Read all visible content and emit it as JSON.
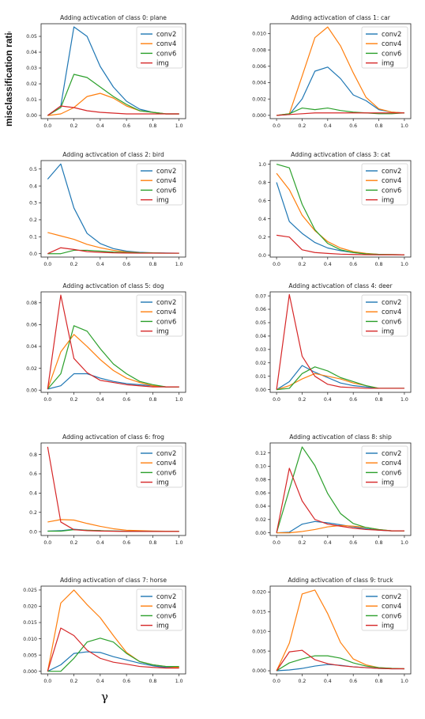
{
  "figure": {
    "ylabel": "misclassification ratio",
    "xlabel": "γ",
    "colors": {
      "conv2": "#1f77b4",
      "conv4": "#ff7f0e",
      "conv6": "#2ca02c",
      "img": "#d62728"
    }
  },
  "chart_data": [
    {
      "type": "line",
      "title": "Adding activcation of class 0: plane",
      "x": [
        0.0,
        0.1,
        0.2,
        0.3,
        0.4,
        0.5,
        0.6,
        0.7,
        0.8,
        0.9,
        1.0
      ],
      "ylim": [
        -0.002,
        0.058
      ],
      "yticks": [
        0.0,
        0.01,
        0.02,
        0.03,
        0.04,
        0.05
      ],
      "ytick_labels": [
        "0.00",
        "0.01",
        "0.02",
        "0.03",
        "0.04",
        "0.05"
      ],
      "legend": "top-right",
      "series": [
        {
          "name": "conv2",
          "values": [
            0.0,
            0.006,
            0.056,
            0.05,
            0.031,
            0.018,
            0.009,
            0.004,
            0.002,
            0.001,
            0.001
          ]
        },
        {
          "name": "conv4",
          "values": [
            0.0,
            0.001,
            0.005,
            0.012,
            0.014,
            0.011,
            0.006,
            0.003,
            0.002,
            0.001,
            0.001
          ]
        },
        {
          "name": "conv6",
          "values": [
            0.0,
            0.005,
            0.026,
            0.024,
            0.018,
            0.012,
            0.007,
            0.003,
            0.002,
            0.001,
            0.001
          ]
        },
        {
          "name": "img",
          "values": [
            0.0,
            0.006,
            0.005,
            0.003,
            0.002,
            0.0015,
            0.001,
            0.001,
            0.001,
            0.001,
            0.001
          ]
        }
      ]
    },
    {
      "type": "line",
      "title": "Adding activcation of class 1: car",
      "x": [
        0.0,
        0.1,
        0.2,
        0.3,
        0.4,
        0.5,
        0.6,
        0.7,
        0.8,
        0.9,
        1.0
      ],
      "ylim": [
        -0.0004,
        0.0112
      ],
      "yticks": [
        0.0,
        0.002,
        0.004,
        0.006,
        0.008,
        0.01
      ],
      "ytick_labels": [
        "0.000",
        "0.002",
        "0.004",
        "0.006",
        "0.008",
        "0.010"
      ],
      "legend": "top-right",
      "series": [
        {
          "name": "conv2",
          "values": [
            0.0,
            0.0001,
            0.002,
            0.0054,
            0.0059,
            0.0045,
            0.0025,
            0.0018,
            0.0007,
            0.0004,
            0.0003
          ]
        },
        {
          "name": "conv4",
          "values": [
            0.0,
            0.0002,
            0.0048,
            0.0095,
            0.0108,
            0.0085,
            0.0052,
            0.0022,
            0.0008,
            0.0004,
            0.0003
          ]
        },
        {
          "name": "conv6",
          "values": [
            0.0,
            0.0002,
            0.0009,
            0.0007,
            0.0009,
            0.0006,
            0.0004,
            0.0003,
            0.0002,
            0.0002,
            0.0003
          ]
        },
        {
          "name": "img",
          "values": [
            0.0,
            0.0001,
            0.0002,
            0.0003,
            0.0003,
            0.0003,
            0.0003,
            0.0003,
            0.0003,
            0.0003,
            0.0003
          ]
        }
      ]
    },
    {
      "type": "line",
      "title": "Adding activcation of class 2: bird",
      "x": [
        0.0,
        0.1,
        0.2,
        0.3,
        0.4,
        0.5,
        0.6,
        0.7,
        0.8,
        0.9,
        1.0
      ],
      "ylim": [
        -0.02,
        0.55
      ],
      "yticks": [
        0.0,
        0.1,
        0.2,
        0.3,
        0.4,
        0.5
      ],
      "ytick_labels": [
        "0.0",
        "0.1",
        "0.2",
        "0.3",
        "0.4",
        "0.5"
      ],
      "legend": "top-right",
      "series": [
        {
          "name": "conv2",
          "values": [
            0.44,
            0.53,
            0.27,
            0.12,
            0.06,
            0.03,
            0.015,
            0.008,
            0.005,
            0.004,
            0.003
          ]
        },
        {
          "name": "conv4",
          "values": [
            0.125,
            0.105,
            0.085,
            0.055,
            0.035,
            0.02,
            0.01,
            0.006,
            0.004,
            0.003,
            0.003
          ]
        },
        {
          "name": "conv6",
          "values": [
            0.0,
            0.0,
            0.02,
            0.02,
            0.015,
            0.01,
            0.007,
            0.005,
            0.004,
            0.003,
            0.003
          ]
        },
        {
          "name": "img",
          "values": [
            0.0,
            0.035,
            0.025,
            0.012,
            0.008,
            0.005,
            0.004,
            0.003,
            0.003,
            0.003,
            0.003
          ]
        }
      ]
    },
    {
      "type": "line",
      "title": "Adding activcation of class 3: cat",
      "x": [
        0.0,
        0.1,
        0.2,
        0.3,
        0.4,
        0.5,
        0.6,
        0.7,
        0.8,
        0.9,
        1.0
      ],
      "ylim": [
        -0.02,
        1.04
      ],
      "yticks": [
        0.0,
        0.2,
        0.4,
        0.6,
        0.8,
        1.0
      ],
      "ytick_labels": [
        "0.0",
        "0.2",
        "0.4",
        "0.6",
        "0.8",
        "1.0"
      ],
      "legend": "top-right",
      "series": [
        {
          "name": "conv2",
          "values": [
            0.8,
            0.37,
            0.24,
            0.14,
            0.08,
            0.05,
            0.03,
            0.015,
            0.01,
            0.007,
            0.005
          ]
        },
        {
          "name": "conv4",
          "values": [
            0.9,
            0.72,
            0.44,
            0.27,
            0.15,
            0.08,
            0.04,
            0.02,
            0.01,
            0.007,
            0.005
          ]
        },
        {
          "name": "conv6",
          "values": [
            1.0,
            0.96,
            0.56,
            0.28,
            0.13,
            0.06,
            0.03,
            0.015,
            0.01,
            0.007,
            0.005
          ]
        },
        {
          "name": "img",
          "values": [
            0.22,
            0.2,
            0.06,
            0.03,
            0.02,
            0.012,
            0.008,
            0.006,
            0.005,
            0.005,
            0.005
          ]
        }
      ]
    },
    {
      "type": "line",
      "title": "Adding activcation of class 5: dog",
      "x": [
        0.0,
        0.1,
        0.2,
        0.3,
        0.4,
        0.5,
        0.6,
        0.7,
        0.8,
        0.9,
        1.0
      ],
      "ylim": [
        -0.002,
        0.09
      ],
      "yticks": [
        0.0,
        0.02,
        0.04,
        0.06,
        0.08
      ],
      "ytick_labels": [
        "0.00",
        "0.02",
        "0.04",
        "0.06",
        "0.08"
      ],
      "legend": "top-right",
      "series": [
        {
          "name": "conv2",
          "values": [
            0.001,
            0.004,
            0.015,
            0.015,
            0.011,
            0.008,
            0.006,
            0.005,
            0.004,
            0.003,
            0.003
          ]
        },
        {
          "name": "conv4",
          "values": [
            0.001,
            0.035,
            0.051,
            0.04,
            0.028,
            0.018,
            0.011,
            0.007,
            0.004,
            0.003,
            0.003
          ]
        },
        {
          "name": "conv6",
          "values": [
            0.001,
            0.015,
            0.059,
            0.054,
            0.038,
            0.024,
            0.015,
            0.008,
            0.005,
            0.003,
            0.003
          ]
        },
        {
          "name": "img",
          "values": [
            0.001,
            0.087,
            0.029,
            0.016,
            0.009,
            0.007,
            0.005,
            0.004,
            0.003,
            0.003,
            0.003
          ]
        }
      ]
    },
    {
      "type": "line",
      "title": "Adding activcation of class 4: deer",
      "x": [
        0.0,
        0.1,
        0.2,
        0.3,
        0.4,
        0.5,
        0.6,
        0.7,
        0.8,
        0.9,
        1.0
      ],
      "ylim": [
        -0.002,
        0.073
      ],
      "yticks": [
        0.0,
        0.01,
        0.02,
        0.03,
        0.04,
        0.05,
        0.06,
        0.07
      ],
      "ytick_labels": [
        "0.00",
        "0.01",
        "0.02",
        "0.03",
        "0.04",
        "0.05",
        "0.06",
        "0.07"
      ],
      "legend": "top-right",
      "series": [
        {
          "name": "conv2",
          "values": [
            0.0,
            0.006,
            0.018,
            0.013,
            0.009,
            0.005,
            0.003,
            0.002,
            0.001,
            0.001,
            0.001
          ]
        },
        {
          "name": "conv4",
          "values": [
            0.0,
            0.003,
            0.008,
            0.012,
            0.01,
            0.008,
            0.005,
            0.003,
            0.001,
            0.001,
            0.001
          ]
        },
        {
          "name": "conv6",
          "values": [
            0.0,
            0.001,
            0.012,
            0.017,
            0.014,
            0.009,
            0.006,
            0.003,
            0.001,
            0.001,
            0.001
          ]
        },
        {
          "name": "img",
          "values": [
            0.0,
            0.071,
            0.025,
            0.01,
            0.004,
            0.002,
            0.0015,
            0.001,
            0.001,
            0.001,
            0.001
          ]
        }
      ]
    },
    {
      "type": "line",
      "title": "Adding activcation of class 6: frog",
      "x": [
        0.0,
        0.1,
        0.2,
        0.3,
        0.4,
        0.5,
        0.6,
        0.7,
        0.8,
        0.9,
        1.0
      ],
      "ylim": [
        -0.04,
        0.92
      ],
      "yticks": [
        0.0,
        0.2,
        0.4,
        0.6,
        0.8
      ],
      "ytick_labels": [
        "0.0",
        "0.2",
        "0.4",
        "0.6",
        "0.8"
      ],
      "legend": "top-right",
      "series": [
        {
          "name": "conv2",
          "values": [
            0.005,
            0.01,
            0.025,
            0.015,
            0.01,
            0.006,
            0.004,
            0.003,
            0.003,
            0.002,
            0.002
          ]
        },
        {
          "name": "conv4",
          "values": [
            0.1,
            0.125,
            0.12,
            0.085,
            0.055,
            0.03,
            0.015,
            0.01,
            0.006,
            0.004,
            0.003
          ]
        },
        {
          "name": "conv6",
          "values": [
            0.005,
            0.005,
            0.02,
            0.015,
            0.01,
            0.006,
            0.004,
            0.003,
            0.003,
            0.002,
            0.002
          ]
        },
        {
          "name": "img",
          "values": [
            0.88,
            0.1,
            0.02,
            0.01,
            0.006,
            0.004,
            0.003,
            0.003,
            0.002,
            0.002,
            0.002
          ]
        }
      ]
    },
    {
      "type": "line",
      "title": "Adding activcation of class 8: ship",
      "x": [
        0.0,
        0.1,
        0.2,
        0.3,
        0.4,
        0.5,
        0.6,
        0.7,
        0.8,
        0.9,
        1.0
      ],
      "ylim": [
        -0.004,
        0.135
      ],
      "yticks": [
        0.0,
        0.02,
        0.04,
        0.06,
        0.08,
        0.1,
        0.12
      ],
      "ytick_labels": [
        "0.00",
        "0.02",
        "0.04",
        "0.06",
        "0.08",
        "0.10",
        "0.12"
      ],
      "legend": "top-right",
      "series": [
        {
          "name": "conv2",
          "values": [
            0.0,
            0.001,
            0.013,
            0.017,
            0.015,
            0.012,
            0.009,
            0.006,
            0.004,
            0.003,
            0.003
          ]
        },
        {
          "name": "conv4",
          "values": [
            0.0,
            0.0,
            0.002,
            0.005,
            0.009,
            0.011,
            0.01,
            0.008,
            0.005,
            0.003,
            0.003
          ]
        },
        {
          "name": "conv6",
          "values": [
            0.0,
            0.065,
            0.129,
            0.101,
            0.059,
            0.029,
            0.014,
            0.008,
            0.005,
            0.003,
            0.003
          ]
        },
        {
          "name": "img",
          "values": [
            0.0,
            0.097,
            0.048,
            0.02,
            0.013,
            0.01,
            0.007,
            0.005,
            0.004,
            0.003,
            0.003
          ]
        }
      ]
    },
    {
      "type": "line",
      "title": "Adding activcation of class 7: horse",
      "x": [
        0.0,
        0.1,
        0.2,
        0.3,
        0.4,
        0.5,
        0.6,
        0.7,
        0.8,
        0.9,
        1.0
      ],
      "ylim": [
        -0.0008,
        0.0262
      ],
      "yticks": [
        0.0,
        0.005,
        0.01,
        0.015,
        0.02,
        0.025
      ],
      "ytick_labels": [
        "0.000",
        "0.005",
        "0.010",
        "0.015",
        "0.020",
        "0.025"
      ],
      "legend": "top-right",
      "series": [
        {
          "name": "conv2",
          "values": [
            0.0,
            0.002,
            0.0055,
            0.006,
            0.0058,
            0.0045,
            0.0035,
            0.0025,
            0.0017,
            0.0012,
            0.0012
          ]
        },
        {
          "name": "conv4",
          "values": [
            0.0,
            0.021,
            0.025,
            0.0205,
            0.0165,
            0.011,
            0.0058,
            0.003,
            0.002,
            0.0015,
            0.0012
          ]
        },
        {
          "name": "conv6",
          "values": [
            0.0,
            0.0,
            0.004,
            0.009,
            0.0102,
            0.009,
            0.0055,
            0.003,
            0.002,
            0.0015,
            0.0015
          ]
        },
        {
          "name": "img",
          "values": [
            0.0,
            0.0133,
            0.011,
            0.0065,
            0.004,
            0.0028,
            0.0022,
            0.0015,
            0.0012,
            0.001,
            0.001
          ]
        }
      ]
    },
    {
      "type": "line",
      "title": "Adding activcation of class 9: truck",
      "x": [
        0.0,
        0.1,
        0.2,
        0.3,
        0.4,
        0.5,
        0.6,
        0.7,
        0.8,
        0.9,
        1.0
      ],
      "ylim": [
        -0.0008,
        0.0215
      ],
      "yticks": [
        0.0,
        0.005,
        0.01,
        0.015,
        0.02
      ],
      "ytick_labels": [
        "0.000",
        "0.005",
        "0.010",
        "0.015",
        "0.020"
      ],
      "legend": "top-right",
      "series": [
        {
          "name": "conv2",
          "values": [
            0.0,
            0.0002,
            0.0006,
            0.0012,
            0.0016,
            0.0014,
            0.001,
            0.0008,
            0.0006,
            0.0005,
            0.0005
          ]
        },
        {
          "name": "conv4",
          "values": [
            0.0,
            0.007,
            0.0195,
            0.0205,
            0.0145,
            0.0072,
            0.003,
            0.0015,
            0.0008,
            0.0006,
            0.0005
          ]
        },
        {
          "name": "conv6",
          "values": [
            0.0,
            0.002,
            0.003,
            0.0038,
            0.0038,
            0.0032,
            0.002,
            0.0012,
            0.0008,
            0.0006,
            0.0005
          ]
        },
        {
          "name": "img",
          "values": [
            0.0,
            0.0048,
            0.0052,
            0.0028,
            0.0018,
            0.0013,
            0.001,
            0.0008,
            0.0006,
            0.0005,
            0.0005
          ]
        }
      ]
    }
  ]
}
